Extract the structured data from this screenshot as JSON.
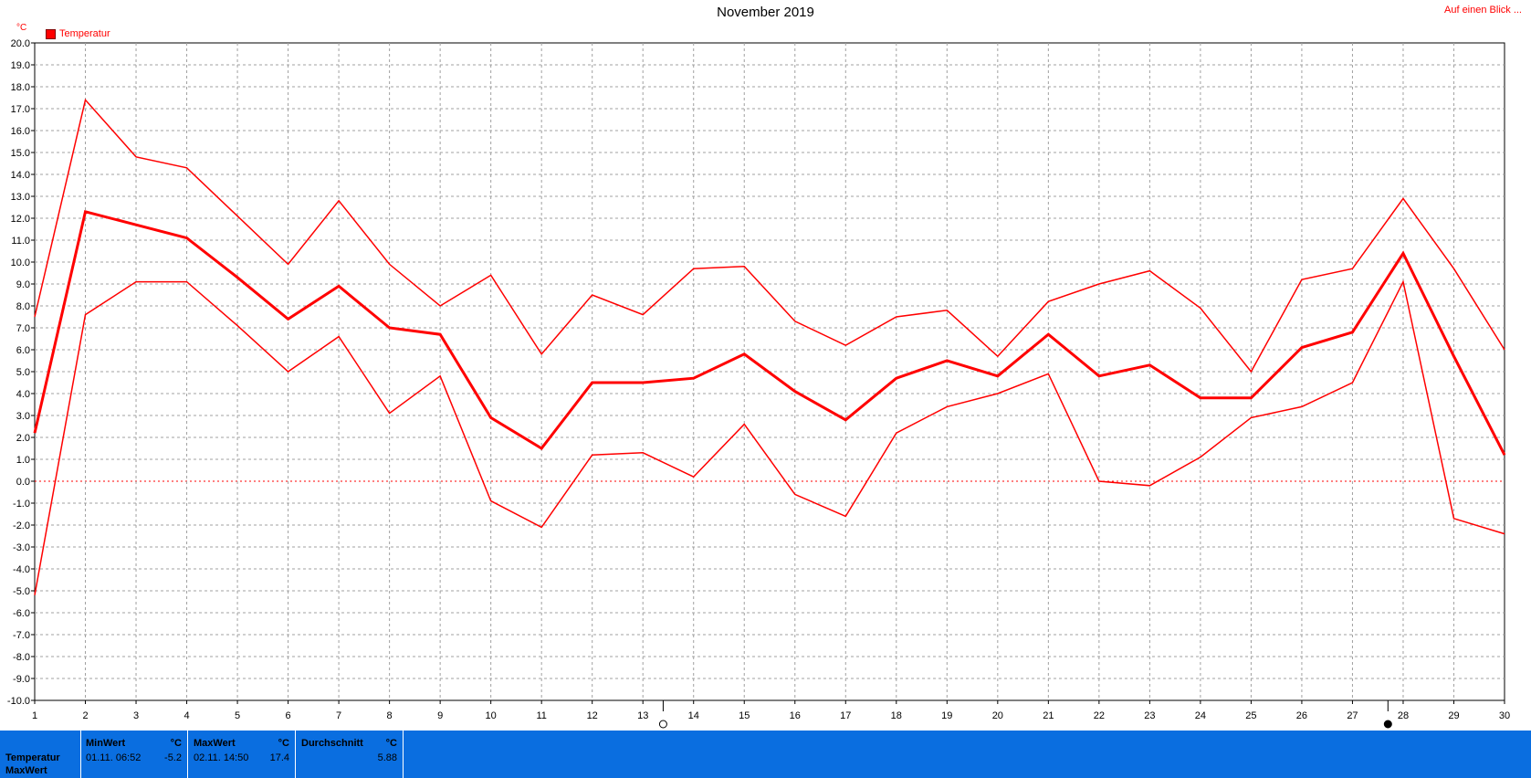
{
  "title": "November 2019",
  "top_link": "Auf einen Blick ...",
  "y_unit": "°C",
  "legend": {
    "label": "Temperatur",
    "color": "#ff0000"
  },
  "colors": {
    "series": "#ff0000",
    "grid": "#a0a0a0",
    "zero_line": "#ff0000",
    "footer_bg": "#0a6ee0"
  },
  "icons": [
    "new-moon-marker-icon",
    "full-moon-marker-icon"
  ],
  "chart_data": {
    "type": "line",
    "x": [
      1,
      2,
      3,
      4,
      5,
      6,
      7,
      8,
      9,
      10,
      11,
      12,
      13,
      14,
      15,
      16,
      17,
      18,
      19,
      20,
      21,
      22,
      23,
      24,
      25,
      26,
      27,
      28,
      29,
      30
    ],
    "x_tick_labels": [
      "1",
      "2",
      "3",
      "4",
      "5",
      "6",
      "7",
      "8",
      "9",
      "10",
      "11",
      "12",
      "13",
      "14",
      "15",
      "16",
      "17",
      "18",
      "19",
      "20",
      "21",
      "22",
      "23",
      "24",
      "25",
      "26",
      "27",
      "28",
      "29",
      "30"
    ],
    "y_tick_labels": [
      "20.0",
      "19.0",
      "18.0",
      "17.0",
      "16.0",
      "15.0",
      "14.0",
      "13.0",
      "12.0",
      "11.0",
      "10.0",
      "9.0",
      "8.0",
      "7.0",
      "6.0",
      "5.0",
      "4.0",
      "3.0",
      "2.0",
      "1.0",
      "0.0",
      "-1.0",
      "-2.0",
      "-3.0",
      "-4.0",
      "-5.0",
      "-6.0",
      "-7.0",
      "-8.0",
      "-9.0",
      "-10.0"
    ],
    "ylim": [
      -10,
      20
    ],
    "xlim": [
      1,
      30
    ],
    "grid": true,
    "legend_position": "top-left",
    "series": [
      {
        "name": "Temperatur",
        "role": "max",
        "values": [
          7.5,
          17.4,
          14.8,
          14.3,
          12.1,
          9.9,
          12.8,
          9.9,
          8.0,
          9.4,
          5.8,
          8.5,
          7.6,
          9.7,
          9.8,
          7.3,
          6.2,
          7.5,
          7.8,
          5.7,
          8.2,
          9.0,
          9.6,
          7.9,
          5.0,
          9.2,
          9.7,
          12.9,
          9.7,
          6.0
        ]
      },
      {
        "role": "avg",
        "values": [
          2.2,
          12.3,
          11.7,
          11.1,
          9.3,
          7.4,
          8.9,
          7.0,
          6.7,
          2.9,
          1.5,
          4.5,
          4.5,
          4.7,
          5.8,
          4.1,
          2.8,
          4.7,
          5.5,
          4.8,
          6.7,
          4.8,
          5.3,
          3.8,
          3.8,
          6.1,
          6.8,
          10.4,
          5.7,
          1.2
        ]
      },
      {
        "role": "min",
        "values": [
          -5.2,
          7.6,
          9.1,
          9.1,
          7.1,
          5.0,
          6.6,
          3.1,
          4.8,
          -0.9,
          -2.1,
          1.2,
          1.3,
          0.2,
          2.6,
          -0.6,
          -1.6,
          2.2,
          3.4,
          4.0,
          4.9,
          0.0,
          -0.2,
          1.1,
          2.9,
          3.4,
          4.5,
          9.1,
          -1.7,
          -2.4
        ]
      }
    ],
    "moon_markers": [
      {
        "type": "new",
        "x": 13.4
      },
      {
        "type": "full",
        "x": 27.7
      }
    ]
  },
  "footer": {
    "row_labels": [
      "Temperatur",
      "MaxWert"
    ],
    "min": {
      "header": "MinWert",
      "unit": "°C",
      "time": "01.11.  06:52",
      "value": "-5.2"
    },
    "max": {
      "header": "MaxWert",
      "unit": "°C",
      "time": "02.11.  14:50",
      "value": "17.4"
    },
    "avg": {
      "header": "Durchschnitt",
      "unit": "°C",
      "value": "5.88"
    }
  }
}
